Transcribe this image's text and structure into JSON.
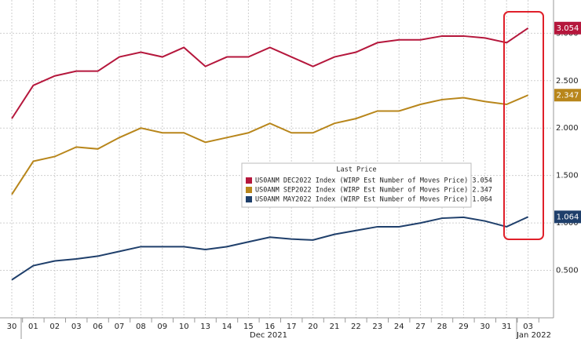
{
  "chart_data": {
    "type": "line",
    "categories": [
      "30",
      "01",
      "02",
      "03",
      "06",
      "07",
      "08",
      "09",
      "10",
      "13",
      "14",
      "15",
      "16",
      "17",
      "20",
      "21",
      "22",
      "23",
      "24",
      "27",
      "28",
      "29",
      "30",
      "31",
      "03"
    ],
    "x_group_labels": [
      "Dec 2021",
      "Jan 2022"
    ],
    "legend_title": "Last Price",
    "series": [
      {
        "name": "US0ANM MAY2022 Index (WIRP Est Number of Moves Price) 1.064",
        "color": "#1f3f6b",
        "values": [
          0.4,
          0.55,
          0.6,
          0.62,
          0.65,
          0.7,
          0.75,
          0.75,
          0.75,
          0.72,
          0.75,
          0.8,
          0.85,
          0.83,
          0.82,
          0.88,
          0.92,
          0.96,
          0.96,
          1.0,
          1.05,
          1.06,
          1.02,
          0.96,
          1.064
        ]
      },
      {
        "name": "US0ANM SEP2022 Index (WIRP Est Number of Moves Price) 2.347",
        "color": "#b8861b",
        "values": [
          1.3,
          1.65,
          1.7,
          1.8,
          1.78,
          1.9,
          2.0,
          1.95,
          1.95,
          1.85,
          1.9,
          1.95,
          2.05,
          1.95,
          1.95,
          2.05,
          2.1,
          2.18,
          2.18,
          2.25,
          2.3,
          2.32,
          2.28,
          2.25,
          2.347
        ]
      },
      {
        "name": "US0ANM DEC2022 Index (WIRP Est Number of Moves Price) 3.054",
        "color": "#b5173c",
        "values": [
          2.1,
          2.45,
          2.55,
          2.6,
          2.6,
          2.75,
          2.8,
          2.75,
          2.85,
          2.65,
          2.75,
          2.75,
          2.85,
          2.75,
          2.65,
          2.75,
          2.8,
          2.9,
          2.93,
          2.93,
          2.97,
          2.97,
          2.95,
          2.9,
          3.054
        ]
      }
    ],
    "ylim": [
      0,
      3.35
    ],
    "yticks": [
      {
        "value": 0.5,
        "label": "0.500"
      },
      {
        "value": 1,
        "label": "1.000"
      },
      {
        "value": 1.5,
        "label": "1.500"
      },
      {
        "value": 2,
        "label": "2.000"
      },
      {
        "value": 2.5,
        "label": "2.500"
      },
      {
        "value": 3,
        "label": "3.000"
      }
    ],
    "grid": true
  }
}
